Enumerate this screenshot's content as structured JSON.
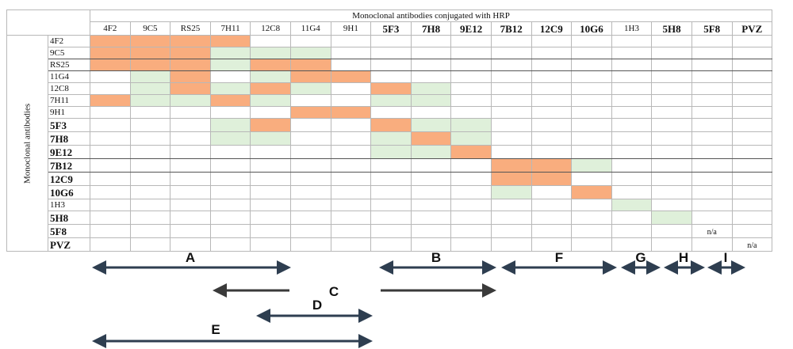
{
  "header": {
    "title": "Monoclonal antibodies conjugated with HRP"
  },
  "side_label": "Monoclonal antibodies",
  "columns": [
    {
      "label": "4F2",
      "bold": false
    },
    {
      "label": "9C5",
      "bold": false
    },
    {
      "label": "RS25",
      "bold": false
    },
    {
      "label": "7H11",
      "bold": false
    },
    {
      "label": "12C8",
      "bold": false
    },
    {
      "label": "11G4",
      "bold": false
    },
    {
      "label": "9H1",
      "bold": false
    },
    {
      "label": "5F3",
      "bold": true
    },
    {
      "label": "7H8",
      "bold": true
    },
    {
      "label": "9E12",
      "bold": true
    },
    {
      "label": "7B12",
      "bold": true
    },
    {
      "label": "12C9",
      "bold": true
    },
    {
      "label": "10G6",
      "bold": true
    },
    {
      "label": "1H3",
      "bold": false
    },
    {
      "label": "5H8",
      "bold": true
    },
    {
      "label": "5F8",
      "bold": true
    },
    {
      "label": "PVZ",
      "bold": true
    }
  ],
  "legend_colors": {
    "O": "#f9ad7e",
    "G": "#dff0da"
  },
  "rows": [
    {
      "label": "4F2",
      "bold": false,
      "cells": [
        "O",
        "O",
        "O",
        "O",
        "",
        "",
        "",
        "",
        "",
        "",
        "",
        "",
        "",
        "",
        "",
        "",
        ""
      ]
    },
    {
      "label": "9C5",
      "bold": false,
      "cells": [
        "O",
        "O",
        "O",
        "G",
        "G",
        "G",
        "",
        "",
        "",
        "",
        "",
        "",
        "",
        "",
        "",
        "",
        ""
      ]
    },
    {
      "label": "RS25",
      "bold": false,
      "cells": [
        "O",
        "O",
        "O",
        "G",
        "O",
        "O",
        "",
        "",
        "",
        "",
        "",
        "",
        "",
        "",
        "",
        "",
        ""
      ]
    },
    {
      "label": "11G4",
      "bold": false,
      "cells": [
        "",
        "G",
        "O",
        "",
        "G",
        "O",
        "O",
        "",
        "",
        "",
        "",
        "",
        "",
        "",
        "",
        "",
        ""
      ]
    },
    {
      "label": "12C8",
      "bold": false,
      "cells": [
        "",
        "G",
        "O",
        "G",
        "O",
        "G",
        "",
        "O",
        "G",
        "",
        "",
        "",
        "",
        "",
        "",
        "",
        ""
      ]
    },
    {
      "label": "7H11",
      "bold": false,
      "cells": [
        "O",
        "G",
        "G",
        "O",
        "G",
        "",
        "",
        "G",
        "G",
        "",
        "",
        "",
        "",
        "",
        "",
        "",
        ""
      ]
    },
    {
      "label": "9H1",
      "bold": false,
      "cells": [
        "",
        "",
        "",
        "",
        "",
        "O",
        "O",
        "",
        "",
        "",
        "",
        "",
        "",
        "",
        "",
        "",
        ""
      ]
    },
    {
      "label": "5F3",
      "bold": true,
      "cells": [
        "",
        "",
        "",
        "G",
        "O",
        "",
        "",
        "O",
        "G",
        "G",
        "",
        "",
        "",
        "",
        "",
        "",
        ""
      ]
    },
    {
      "label": "7H8",
      "bold": true,
      "cells": [
        "",
        "",
        "",
        "G",
        "G",
        "",
        "",
        "G",
        "O",
        "G",
        "",
        "",
        "",
        "",
        "",
        "",
        ""
      ]
    },
    {
      "label": "9E12",
      "bold": true,
      "cells": [
        "",
        "",
        "",
        "",
        "",
        "",
        "",
        "G",
        "G",
        "O",
        "",
        "",
        "",
        "",
        "",
        "",
        ""
      ]
    },
    {
      "label": "7B12",
      "bold": true,
      "cells": [
        "",
        "",
        "",
        "",
        "",
        "",
        "",
        "",
        "",
        "",
        "O",
        "O",
        "G",
        "",
        "",
        "",
        ""
      ]
    },
    {
      "label": "12C9",
      "bold": true,
      "cells": [
        "",
        "",
        "",
        "",
        "",
        "",
        "",
        "",
        "",
        "",
        "O",
        "O",
        "",
        "",
        "",
        "",
        ""
      ]
    },
    {
      "label": "10G6",
      "bold": true,
      "cells": [
        "",
        "",
        "",
        "",
        "",
        "",
        "",
        "",
        "",
        "",
        "G",
        "",
        "O",
        "",
        "",
        "",
        ""
      ]
    },
    {
      "label": "1H3",
      "bold": false,
      "cells": [
        "",
        "",
        "",
        "",
        "",
        "",
        "",
        "",
        "",
        "",
        "",
        "",
        "",
        "G",
        "",
        "",
        ""
      ]
    },
    {
      "label": "5H8",
      "bold": true,
      "cells": [
        "",
        "",
        "",
        "",
        "",
        "",
        "",
        "",
        "",
        "",
        "",
        "",
        "",
        "",
        "G",
        "",
        ""
      ]
    },
    {
      "label": "5F8",
      "bold": true,
      "cells": [
        "",
        "",
        "",
        "",
        "",
        "",
        "",
        "",
        "",
        "",
        "",
        "",
        "",
        "",
        "",
        "n/a",
        ""
      ]
    },
    {
      "label": "PVZ",
      "bold": true,
      "cells": [
        "",
        "",
        "",
        "",
        "",
        "",
        "",
        "",
        "",
        "",
        "",
        "",
        "",
        "",
        "",
        "",
        "n/a"
      ]
    }
  ],
  "groups": {
    "A": "A",
    "B": "B",
    "C": "C",
    "D": "D",
    "E": "E",
    "F": "F",
    "G": "G",
    "H": "H",
    "I": "I"
  },
  "arrow_color": "#2e3e50"
}
